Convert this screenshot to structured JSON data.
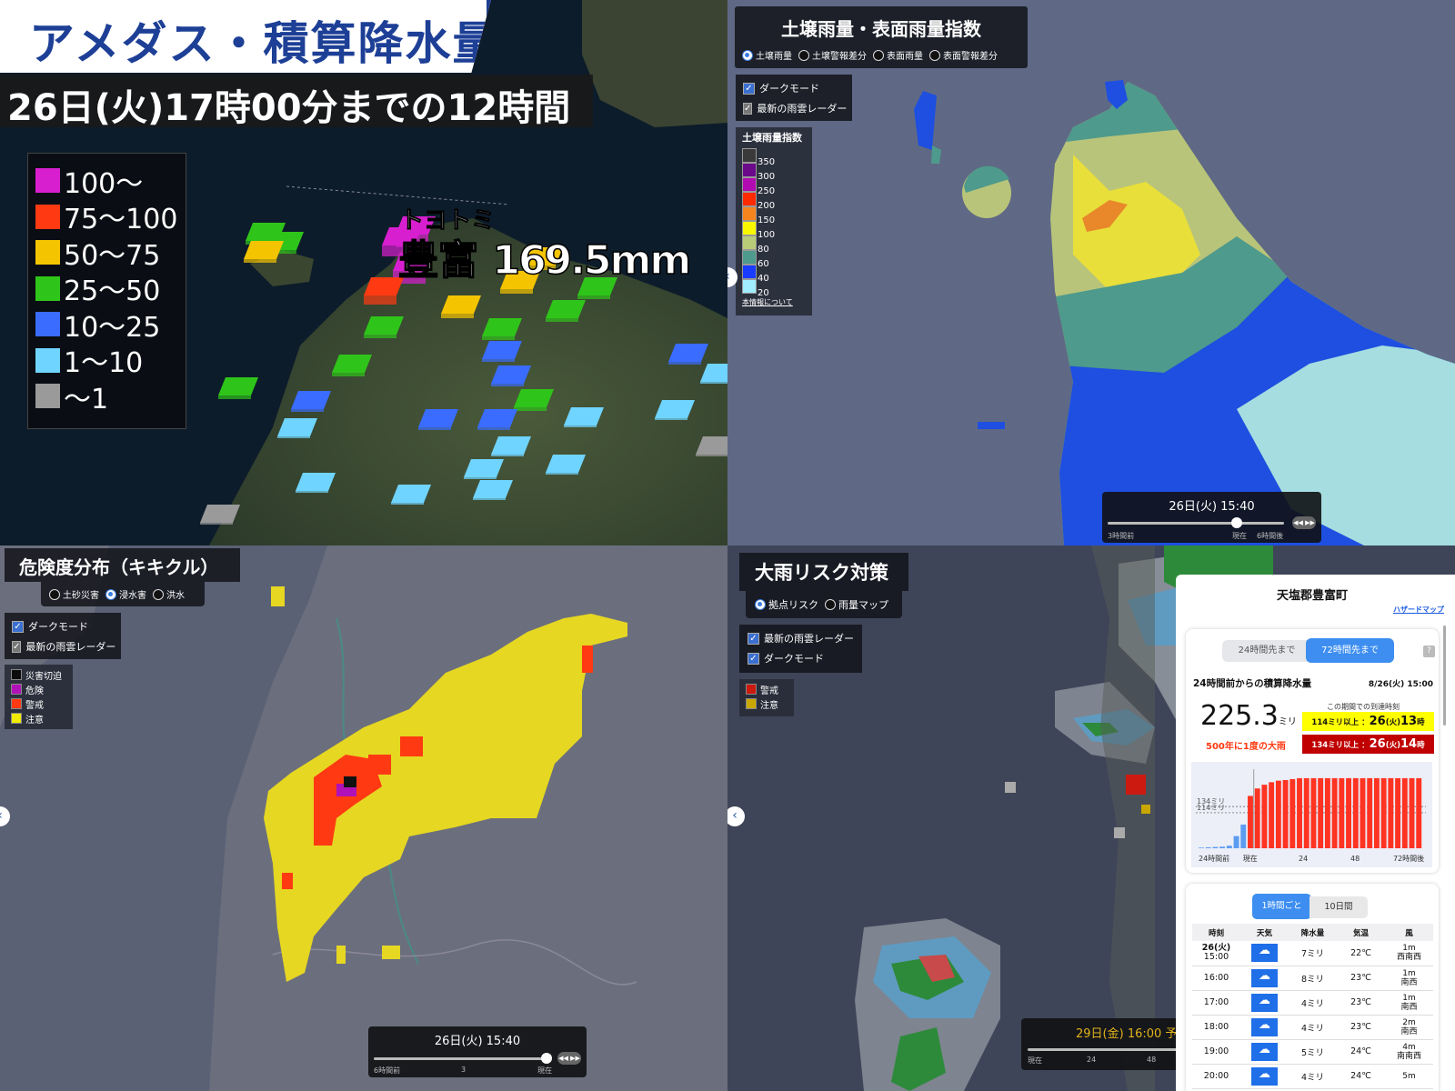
{
  "amedas": {
    "title": "アメダス・積算降水量",
    "subtitle": "26日(火)17時00分までの12時間",
    "legend": [
      {
        "label": "100〜",
        "color": "#d81fd0"
      },
      {
        "label": "75〜100",
        "color": "#ff3a12"
      },
      {
        "label": "50〜75",
        "color": "#f5c400"
      },
      {
        "label": "25〜50",
        "color": "#2fc41a"
      },
      {
        "label": "10〜25",
        "color": "#3a6cff"
      },
      {
        "label": "1〜10",
        "color": "#6fd4ff"
      },
      {
        "label": "〜1",
        "color": "#9a9a9a"
      }
    ],
    "station": {
      "kana": "トヨトミ",
      "name": "豊富",
      "value": "169.5mm"
    }
  },
  "soil": {
    "title": "土壌雨量・表面雨量指数",
    "radios": [
      {
        "label": "土壌雨量",
        "selected": true
      },
      {
        "label": "土壌警報差分",
        "selected": false
      },
      {
        "label": "表面雨量",
        "selected": false
      },
      {
        "label": "表面警報差分",
        "selected": false
      }
    ],
    "checks": [
      {
        "label": "ダークモード",
        "checked": true
      },
      {
        "label": "最新の雨雲レーダー",
        "checked": true,
        "disabled": true
      }
    ],
    "legend_title": "土壌雨量指数",
    "legend_colors": [
      "#3a3a3a",
      "#6a0a8a",
      "#b00ab0",
      "#ff2a00",
      "#f5841e",
      "#f8f800",
      "#b8cc78",
      "#4e9a8c",
      "#1a3cff",
      "#a0eeff"
    ],
    "legend_labels": [
      "350",
      "300",
      "250",
      "200",
      "150",
      "100",
      "80",
      "60",
      "40",
      "20"
    ],
    "info_link": "本情報について",
    "slider": {
      "time": "26日(火) 15:40",
      "labels": [
        "3時間前",
        "現在",
        "6時間後"
      ],
      "position_pct": 73
    }
  },
  "kikikuru": {
    "title": "危険度分布（キキクル）",
    "radios": [
      {
        "label": "土砂災害",
        "selected": false
      },
      {
        "label": "浸水害",
        "selected": true
      },
      {
        "label": "洪水",
        "selected": false
      }
    ],
    "checks": [
      {
        "label": "ダークモード",
        "checked": true
      },
      {
        "label": "最新の雨雲レーダー",
        "checked": true,
        "disabled": true
      }
    ],
    "legend": [
      {
        "label": "災害切迫",
        "color": "#0c0c0c"
      },
      {
        "label": "危険",
        "color": "#b012b8"
      },
      {
        "label": "警戒",
        "color": "#ff3a12"
      },
      {
        "label": "注意",
        "color": "#f2ec00"
      }
    ],
    "slider": {
      "time": "26日(火) 15:40",
      "labels": [
        "6時間前",
        "3",
        "現在"
      ],
      "position_pct": 97
    }
  },
  "risk": {
    "title": "大雨リスク対策",
    "radios": [
      {
        "label": "拠点リスク",
        "selected": true
      },
      {
        "label": "雨量マップ",
        "selected": false
      }
    ],
    "checks": [
      {
        "label": "最新の雨雲レーダー",
        "checked": true
      },
      {
        "label": "ダークモード",
        "checked": true
      }
    ],
    "legend": [
      {
        "label": "警戒",
        "color": "#cc1a10"
      },
      {
        "label": "注意",
        "color": "#c8a800"
      }
    ],
    "slider": {
      "time": "29日(金) 16:00 予",
      "labels": [
        "現在",
        "24",
        "48"
      ]
    },
    "panel": {
      "place": "天塩郡豊富町",
      "hazard_link": "ハザードマップ",
      "tabs": [
        "24時間先まで",
        "72時間先まで"
      ],
      "active_tab": 1,
      "help": "?",
      "heading": "24時間前からの積算降水量",
      "datetime": "8/26(火) 15:00",
      "amount": "225.3",
      "amount_unit": "ミリ",
      "rarity": "500年に1度の大雨",
      "period_label": "この期間での到達時刻",
      "thresholds": [
        {
          "label": "114ミリ以上 ：",
          "day": "26",
          "dow": "(火)",
          "hour": "13",
          "hour_unit": "時",
          "bg": "#ffff00",
          "fg": "#111"
        },
        {
          "label": "134ミリ以上 ：",
          "day": "26",
          "dow": "(火)",
          "hour": "14",
          "hour_unit": "時",
          "bg": "#c00000",
          "fg": "#fff"
        }
      ],
      "table_tabs": [
        "1時間ごと",
        "10日間"
      ],
      "table_headers": [
        "時刻",
        "天気",
        "降水量",
        "気温",
        "風"
      ],
      "rows": [
        {
          "date": "26(火)",
          "time": "15:00",
          "weather": "rain-icon",
          "precip": "7ミリ",
          "temp": "22℃",
          "wind": "1m",
          "dir": "西南西"
        },
        {
          "date": "",
          "time": "16:00",
          "weather": "rain-icon",
          "precip": "8ミリ",
          "temp": "23℃",
          "wind": "1m",
          "dir": "南西"
        },
        {
          "date": "",
          "time": "17:00",
          "weather": "rain-icon",
          "precip": "4ミリ",
          "temp": "23℃",
          "wind": "1m",
          "dir": "南西"
        },
        {
          "date": "",
          "time": "18:00",
          "weather": "rain-icon",
          "precip": "4ミリ",
          "temp": "23℃",
          "wind": "2m",
          "dir": "南西"
        },
        {
          "date": "",
          "time": "19:00",
          "weather": "rain-icon",
          "precip": "5ミリ",
          "temp": "24℃",
          "wind": "4m",
          "dir": "南南西"
        },
        {
          "date": "",
          "time": "20:00",
          "weather": "rain-icon",
          "precip": "4ミリ",
          "temp": "24℃",
          "wind": "5m",
          "dir": ""
        }
      ]
    }
  },
  "chart_data": {
    "type": "bar",
    "title": "",
    "x_tick_labels": [
      "24時間前",
      "現在",
      "24",
      "48",
      "72時間後"
    ],
    "threshold_lines": [
      {
        "label": "134ミリ",
        "value": 134
      },
      {
        "label": "114ミリ",
        "value": 114
      }
    ],
    "ylim": [
      0,
      240
    ],
    "past_color": "#5b9cf0",
    "future_color": "#ff3322",
    "values": [
      2,
      3,
      4,
      5,
      8,
      39,
      76,
      168,
      192,
      204,
      212,
      217,
      219,
      222,
      225,
      225,
      225,
      225,
      225,
      225,
      225,
      225,
      225,
      225,
      225,
      225,
      225,
      225,
      225,
      225,
      225,
      225
    ],
    "past_count": 7
  }
}
